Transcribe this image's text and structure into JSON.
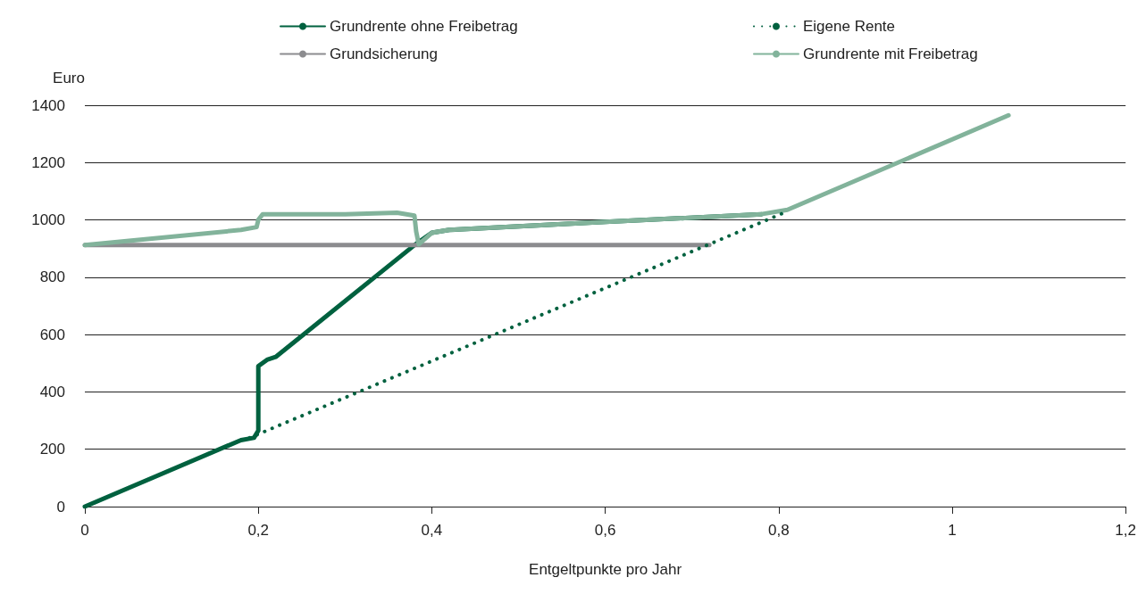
{
  "chart_data": {
    "type": "line",
    "xlabel": "Entgeltpunkte pro Jahr",
    "ylabel": "Euro",
    "xlim": [
      0,
      1.2
    ],
    "xticks": [
      0,
      {
        "value": 0.2,
        "label": "0,2"
      },
      {
        "value": 0.4,
        "label": "0,4"
      },
      {
        "value": 0.6,
        "label": "0,6"
      },
      {
        "value": 0.8,
        "label": "0,8"
      },
      1,
      {
        "value": 1.2,
        "label": "1,2"
      }
    ],
    "ylim": [
      0,
      1400
    ],
    "yticks": [
      0,
      200,
      400,
      600,
      800,
      1000,
      1200,
      1400
    ],
    "grid": "y",
    "legend": "top",
    "marker": "none",
    "series": [
      {
        "name": "Grundrente ohne Freibetrag",
        "color": "#00613f",
        "line_style": "solid",
        "x": [
          0,
          0.18,
          0.195,
          0.2,
          0.2,
          0.21,
          0.22,
          0.38,
          0.4,
          0.42,
          0.6,
          0.78
        ],
        "values": [
          0,
          232,
          240,
          265,
          490,
          512,
          522,
          912,
          955,
          965,
          993,
          1020
        ]
      },
      {
        "name": "Grundsicherung",
        "color": "#8c8c8f",
        "line_style": "solid",
        "x": [
          0,
          0.72
        ],
        "values": [
          912,
          912
        ]
      },
      {
        "name": "Eigene Rente",
        "color": "#00613f",
        "line_style": "dotted",
        "x": [
          0.19,
          0.81
        ],
        "values": [
          240,
          1030
        ]
      },
      {
        "name": "Grundrente mit Freibetrag",
        "color": "#82b39b",
        "line_style": "solid",
        "x": [
          0,
          0.18,
          0.198,
          0.2,
          0.205,
          0.3,
          0.36,
          0.38,
          0.382,
          0.385,
          0.4,
          0.42,
          0.6,
          0.78,
          0.81,
          1.065
        ],
        "values": [
          912,
          965,
          975,
          1000,
          1020,
          1020,
          1025,
          1015,
          960,
          915,
          955,
          965,
          993,
          1020,
          1035,
          1365
        ]
      }
    ]
  }
}
